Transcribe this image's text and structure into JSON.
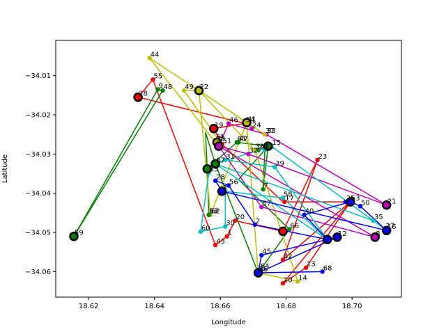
{
  "chart_data": {
    "type": "scatter",
    "title": "",
    "xlabel": "Longitude",
    "ylabel": "Latitude",
    "xlim": [
      18.61,
      18.715
    ],
    "ylim": [
      -34.0665,
      -34.001
    ],
    "xticks": [
      18.62,
      18.64,
      18.66,
      18.68,
      18.7
    ],
    "xtick_labels": [
      "18.62",
      "18.64",
      "18.66",
      "18.68",
      "18.70"
    ],
    "yticks": [
      -34.06,
      -34.05,
      -34.04,
      -34.03,
      -34.02,
      -34.01
    ],
    "ytick_labels": [
      "−34.06",
      "−34.05",
      "−34.04",
      "−34.03",
      "−34.02",
      "−34.01"
    ],
    "grid": false,
    "points": [
      {
        "id": "1",
        "x": 18.662,
        "y": -34.051,
        "color": "#ff0000"
      },
      {
        "id": "2",
        "x": 18.6705,
        "y": -34.048,
        "color": "#0000ff"
      },
      {
        "id": "3",
        "x": 18.6605,
        "y": -34.0395,
        "color": "#0000ff"
      },
      {
        "id": "4",
        "x": 18.6595,
        "y": -34.0265,
        "color": "#bf00bf"
      },
      {
        "id": "5",
        "x": 18.6605,
        "y": -34.0275,
        "color": "#ff0000"
      },
      {
        "id": "6",
        "x": 18.6585,
        "y": -34.0265,
        "color": "#ff0000"
      },
      {
        "id": "7",
        "x": 18.673,
        "y": -34.039,
        "color": "#008000"
      },
      {
        "id": "8",
        "x": 18.707,
        "y": -34.0512,
        "color": "#bf00bf"
      },
      {
        "id": "9",
        "x": 18.641,
        "y": -34.0135,
        "color": "#008000"
      },
      {
        "id": "10",
        "x": 18.679,
        "y": -34.063,
        "color": "#ff0000"
      },
      {
        "id": "11",
        "x": 18.6735,
        "y": -34.029,
        "color": "#00bfbf"
      },
      {
        "id": "12",
        "x": 18.6955,
        "y": -34.0512,
        "color": "#bfbf00"
      },
      {
        "id": "13",
        "x": 18.686,
        "y": -34.059,
        "color": "#ff0000"
      },
      {
        "id": "14",
        "x": 18.6835,
        "y": -34.0625,
        "color": "#bfbf00"
      },
      {
        "id": "15",
        "x": 18.6755,
        "y": -34.028,
        "color": "#00bfbf"
      },
      {
        "id": "16",
        "x": 18.7105,
        "y": -34.0495,
        "color": "#0000ff"
      },
      {
        "id": "17",
        "x": 18.6795,
        "y": -34.0422,
        "color": "#ff0000"
      },
      {
        "id": "18",
        "x": 18.635,
        "y": -34.0155,
        "color": "#ff0000"
      },
      {
        "id": "19",
        "x": 18.658,
        "y": -34.0235,
        "color": "#ff0000"
      },
      {
        "id": "20",
        "x": 18.6645,
        "y": -34.047,
        "color": "#ff0000"
      },
      {
        "id": "21",
        "x": 18.7105,
        "y": -34.043,
        "color": "#bf00bf"
      },
      {
        "id": "22",
        "x": 18.6535,
        "y": -34.0138,
        "color": "#bfbf00"
      },
      {
        "id": "23",
        "x": 18.6895,
        "y": -34.0315,
        "color": "#ff0000"
      },
      {
        "id": "24",
        "x": 18.6695,
        "y": -34.0235,
        "color": "#bf00bf"
      },
      {
        "id": "25",
        "x": 18.698,
        "y": -34.0422,
        "color": "#0000ff"
      },
      {
        "id": "26",
        "x": 18.6715,
        "y": -34.0603,
        "color": "#0000ff"
      },
      {
        "id": "27",
        "x": 18.71,
        "y": -34.0492,
        "color": "#00bfbf"
      },
      {
        "id": "28",
        "x": 18.6585,
        "y": -34.0368,
        "color": "#0000ff"
      },
      {
        "id": "29",
        "x": 18.6715,
        "y": -34.029,
        "color": "#008000"
      },
      {
        "id": "30",
        "x": 18.6615,
        "y": -34.0485,
        "color": "#00bfbf"
      },
      {
        "id": "31",
        "x": 18.6615,
        "y": -34.0315,
        "color": "#00bfbf"
      },
      {
        "id": "32",
        "x": 18.6685,
        "y": -34.03,
        "color": "#bf00bf"
      },
      {
        "id": "33",
        "x": 18.674,
        "y": -34.025,
        "color": "#bf00bf"
      },
      {
        "id": "34",
        "x": 18.6705,
        "y": -34.029,
        "color": "#bfbf00"
      },
      {
        "id": "35",
        "x": 18.7065,
        "y": -34.047,
        "color": "#00bfbf"
      },
      {
        "id": "36",
        "x": 18.6715,
        "y": -34.0603,
        "color": "#bfbf00"
      },
      {
        "id": "37",
        "x": 18.6735,
        "y": -34.025,
        "color": "#bfbf00"
      },
      {
        "id": "38",
        "x": 18.6585,
        "y": -34.027,
        "color": "#bfbf00"
      },
      {
        "id": "39",
        "x": 18.6765,
        "y": -34.0333,
        "color": "#00bfbf"
      },
      {
        "id": "40",
        "x": 18.6855,
        "y": -34.0455,
        "color": "#0000ff"
      },
      {
        "id": "41",
        "x": 18.668,
        "y": -34.022,
        "color": "#bfbf00"
      },
      {
        "id": "42",
        "x": 18.679,
        "y": -34.057,
        "color": "#ff0000"
      },
      {
        "id": "43",
        "x": 18.6585,
        "y": -34.0532,
        "color": "#ff0000"
      },
      {
        "id": "44",
        "x": 18.6385,
        "y": -34.0055,
        "color": "#bfbf00"
      },
      {
        "id": "45",
        "x": 18.6725,
        "y": -34.0558,
        "color": "#0000ff"
      },
      {
        "id": "46",
        "x": 18.6625,
        "y": -34.0222,
        "color": "#bf00bf"
      },
      {
        "id": "47",
        "x": 18.6655,
        "y": -34.027,
        "color": "#008000"
      },
      {
        "id": "48",
        "x": 18.6425,
        "y": -34.0138,
        "color": "#008000"
      },
      {
        "id": "49",
        "x": 18.649,
        "y": -34.0138,
        "color": "#bfbf00"
      },
      {
        "id": "50",
        "x": 18.7025,
        "y": -34.0433,
        "color": "#0000ff"
      },
      {
        "id": "51",
        "x": 18.6605,
        "y": -34.0275,
        "color": "#ff0000"
      },
      {
        "id": "52",
        "x": 18.6565,
        "y": -34.0455,
        "color": "#008000"
      },
      {
        "id": "53",
        "x": 18.6995,
        "y": -34.0422,
        "color": "#ff0000"
      },
      {
        "id": "54",
        "x": 18.6675,
        "y": -34.0222,
        "color": "#ff0000"
      },
      {
        "id": "55",
        "x": 18.6395,
        "y": -34.011,
        "color": "#ff0000"
      },
      {
        "id": "56",
        "x": 18.6625,
        "y": -34.038,
        "color": "#0000ff"
      },
      {
        "id": "57",
        "x": 18.6725,
        "y": -34.0435,
        "color": "#bf00bf"
      },
      {
        "id": "58",
        "x": 18.679,
        "y": -34.0412,
        "color": "#00bfbf"
      },
      {
        "id": "59",
        "x": 18.6155,
        "y": -34.051,
        "color": "#008000"
      },
      {
        "id": "60",
        "x": 18.654,
        "y": -34.0498,
        "color": "#00bfbf"
      },
      {
        "id": "61",
        "x": 18.665,
        "y": -34.027,
        "color": "#008000"
      },
      {
        "id": "62",
        "x": 18.657,
        "y": -34.0455,
        "color": "#bfbf00"
      },
      {
        "id": "63",
        "x": 18.6565,
        "y": -34.0455,
        "color": "#008000"
      },
      {
        "id": "64",
        "x": 18.672,
        "y": -34.0595,
        "color": "#0000ff"
      },
      {
        "id": "65",
        "x": 18.6565,
        "y": -34.0348,
        "color": "#00bfbf"
      },
      {
        "id": "66",
        "x": 18.681,
        "y": -34.0492,
        "color": "#008000"
      },
      {
        "id": "67",
        "x": 18.6585,
        "y": -34.0325,
        "color": "#00bfbf"
      },
      {
        "id": "68",
        "x": 18.691,
        "y": -34.06,
        "color": "#0000ff"
      }
    ],
    "depots": [
      {
        "x": 18.6155,
        "y": -34.051,
        "color": "#008000"
      },
      {
        "x": 18.635,
        "y": -34.0155,
        "color": "#ff0000"
      },
      {
        "x": 18.6535,
        "y": -34.0138,
        "color": "#bfbf00"
      },
      {
        "x": 18.658,
        "y": -34.0235,
        "color": "#ff0000"
      },
      {
        "x": 18.659,
        "y": -34.027,
        "color": "#bfbf00"
      },
      {
        "x": 18.6595,
        "y": -34.028,
        "color": "#bf00bf"
      },
      {
        "x": 18.668,
        "y": -34.022,
        "color": "#bfbf00"
      },
      {
        "x": 18.6745,
        "y": -34.028,
        "color": "#008000"
      },
      {
        "x": 18.6585,
        "y": -34.0325,
        "color": "#008000"
      },
      {
        "x": 18.656,
        "y": -34.0338,
        "color": "#008000"
      },
      {
        "x": 18.6605,
        "y": -34.0395,
        "color": "#0000ff"
      },
      {
        "x": 18.679,
        "y": -34.0497,
        "color": "#ff0000"
      },
      {
        "x": 18.6925,
        "y": -34.0518,
        "color": "#0000ff"
      },
      {
        "x": 18.6955,
        "y": -34.0512,
        "color": "#0000ff"
      },
      {
        "x": 18.6995,
        "y": -34.0422,
        "color": "#0000ff"
      },
      {
        "x": 18.707,
        "y": -34.0512,
        "color": "#bf00bf"
      },
      {
        "x": 18.7105,
        "y": -34.043,
        "color": "#bf00bf"
      },
      {
        "x": 18.7105,
        "y": -34.0495,
        "color": "#0000ff"
      },
      {
        "x": 18.6715,
        "y": -34.0603,
        "color": "#0000ff"
      }
    ],
    "routes": [
      {
        "color": "#ff0000",
        "path": [
          [
            18.635,
            -34.0155
          ],
          [
            18.6395,
            -34.011
          ],
          [
            18.6585,
            -34.0532
          ],
          [
            18.662,
            -34.051
          ],
          [
            18.6645,
            -34.047
          ],
          [
            18.679,
            -34.0497
          ],
          [
            18.6895,
            -34.0315
          ],
          [
            18.679,
            -34.057
          ],
          [
            18.6995,
            -34.0422
          ],
          [
            18.679,
            -34.063
          ],
          [
            18.686,
            -34.059
          ],
          [
            18.6995,
            -34.0422
          ],
          [
            18.679,
            -34.0422
          ],
          [
            18.6605,
            -34.0275
          ],
          [
            18.658,
            -34.0235
          ],
          [
            18.6675,
            -34.0222
          ],
          [
            18.635,
            -34.0155
          ]
        ]
      },
      {
        "color": "#008000",
        "path": [
          [
            18.6155,
            -34.051
          ],
          [
            18.641,
            -34.0135
          ],
          [
            18.6425,
            -34.0138
          ],
          [
            18.6155,
            -34.051
          ]
        ]
      },
      {
        "color": "#008000",
        "path": [
          [
            18.656,
            -34.0338
          ],
          [
            18.6565,
            -34.0455
          ],
          [
            18.656,
            -34.0338
          ],
          [
            18.6555,
            -34.0245
          ],
          [
            18.6585,
            -34.0325
          ],
          [
            18.6715,
            -34.0603
          ],
          [
            18.681,
            -34.0492
          ],
          [
            18.6655,
            -34.0365
          ],
          [
            18.6735,
            -34.029
          ],
          [
            18.673,
            -34.039
          ],
          [
            18.6745,
            -34.028
          ],
          [
            18.665,
            -34.027
          ],
          [
            18.656,
            -34.0338
          ]
        ]
      },
      {
        "color": "#bfbf00",
        "path": [
          [
            18.6535,
            -34.0138
          ],
          [
            18.6385,
            -34.0055
          ],
          [
            18.6585,
            -34.027
          ],
          [
            18.6595,
            -34.0265
          ],
          [
            18.649,
            -34.0138
          ],
          [
            18.6535,
            -34.0138
          ],
          [
            18.668,
            -34.022
          ],
          [
            18.6715,
            -34.0603
          ],
          [
            18.6835,
            -34.0625
          ],
          [
            18.6705,
            -34.029
          ],
          [
            18.6535,
            -34.0138
          ],
          [
            18.657,
            -34.0455
          ],
          [
            18.668,
            -34.022
          ],
          [
            18.6735,
            -34.025
          ],
          [
            18.6535,
            -34.0138
          ]
        ]
      },
      {
        "color": "#bf00bf",
        "path": [
          [
            18.6595,
            -34.028
          ],
          [
            18.6625,
            -34.0222
          ],
          [
            18.674,
            -34.025
          ],
          [
            18.7105,
            -34.043
          ],
          [
            18.6685,
            -34.03
          ],
          [
            18.6595,
            -34.028
          ],
          [
            18.707,
            -34.0512
          ],
          [
            18.6725,
            -34.0435
          ],
          [
            18.6595,
            -34.028
          ]
        ]
      },
      {
        "color": "#00bfbf",
        "path": [
          [
            18.6585,
            -34.0325
          ],
          [
            18.6615,
            -34.0315
          ],
          [
            18.6765,
            -34.0333
          ],
          [
            18.6925,
            -34.0518
          ],
          [
            18.6585,
            -34.0325
          ],
          [
            18.6565,
            -34.0348
          ],
          [
            18.654,
            -34.0498
          ],
          [
            18.6615,
            -34.0485
          ],
          [
            18.6615,
            -34.0395
          ],
          [
            18.679,
            -34.0412
          ],
          [
            18.6925,
            -34.0518
          ],
          [
            18.6585,
            -34.0325
          ],
          [
            18.6755,
            -34.028
          ],
          [
            18.7065,
            -34.047
          ],
          [
            18.71,
            -34.0492
          ],
          [
            18.7065,
            -34.047
          ],
          [
            18.6585,
            -34.0325
          ]
        ]
      },
      {
        "color": "#0000ff",
        "path": [
          [
            18.6605,
            -34.0395
          ],
          [
            18.6585,
            -34.0368
          ],
          [
            18.6625,
            -34.038
          ],
          [
            18.6705,
            -34.048
          ],
          [
            18.6925,
            -34.0518
          ],
          [
            18.6855,
            -34.0455
          ],
          [
            18.6995,
            -34.0422
          ],
          [
            18.7025,
            -34.0433
          ],
          [
            18.7105,
            -34.0495
          ],
          [
            18.6605,
            -34.0395
          ]
        ]
      },
      {
        "color": "#0000ff",
        "path": [
          [
            18.6715,
            -34.0603
          ],
          [
            18.6725,
            -34.0558
          ],
          [
            18.6955,
            -34.0512
          ],
          [
            18.6715,
            -34.0603
          ],
          [
            18.691,
            -34.06
          ],
          [
            18.6715,
            -34.0603
          ]
        ]
      }
    ]
  }
}
